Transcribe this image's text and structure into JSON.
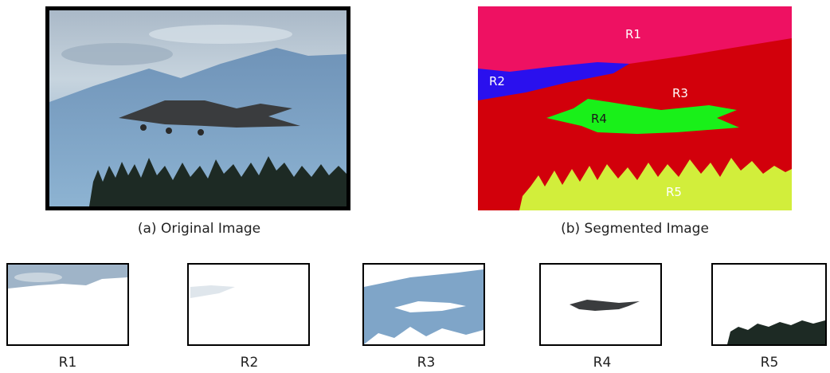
{
  "captions": {
    "original": "(a) Original Image",
    "segmented": "(b) Segmented Image"
  },
  "region_labels": [
    "R1",
    "R2",
    "R3",
    "R4",
    "R5"
  ],
  "region_thumbnails": [
    {
      "label": "R1"
    },
    {
      "label": "R2"
    },
    {
      "label": "R3"
    },
    {
      "label": "R4"
    },
    {
      "label": "R5"
    }
  ],
  "colors": {
    "R1": "#ee1162",
    "R2": "#2a10ee",
    "R3": "#d2000b",
    "R4": "#19f019",
    "R5": "#d2ee3b",
    "sky": "#8fb1cf",
    "mountain": "#5f86ad",
    "trees": "#1d2a24",
    "aircraft": "#3a3c3e"
  }
}
